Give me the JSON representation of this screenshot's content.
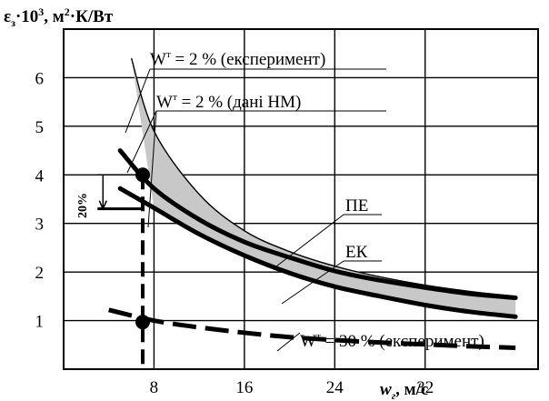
{
  "chart_data": {
    "type": "line",
    "ylabel": "εз·10³, м²·К/Вт",
    "xlabel": "wг, м/с",
    "xlim": [
      0,
      42
    ],
    "ylim": [
      0,
      7
    ],
    "x_ticks": [
      8,
      16,
      24,
      32
    ],
    "y_ticks": [
      1,
      2,
      3,
      4,
      5,
      6
    ],
    "grid": true,
    "series": [
      {
        "name": "ПЕ",
        "style": "solid",
        "x": [
          5,
          8,
          12,
          16,
          20,
          24,
          28,
          32,
          36,
          40
        ],
        "y": [
          4.5,
          3.72,
          3.08,
          2.62,
          2.3,
          2.02,
          1.83,
          1.68,
          1.55,
          1.47
        ]
      },
      {
        "name": "ЕК",
        "style": "solid",
        "x": [
          5,
          8,
          12,
          16,
          20,
          24,
          28,
          32,
          36,
          40
        ],
        "y": [
          3.72,
          3.32,
          2.78,
          2.34,
          1.98,
          1.7,
          1.5,
          1.32,
          1.18,
          1.08
        ]
      },
      {
        "name": "Wᵗ = 30 % (експеримент)",
        "style": "dashed",
        "x": [
          4,
          8,
          12,
          16,
          20,
          24,
          28,
          32,
          36,
          40
        ],
        "y": [
          1.22,
          1.0,
          0.86,
          0.75,
          0.66,
          0.6,
          0.55,
          0.51,
          0.47,
          0.44
        ]
      }
    ],
    "band_upper": {
      "x": [
        6,
        8,
        12,
        16,
        20,
        24,
        28,
        32,
        36,
        40
      ],
      "y": [
        6.4,
        4.9,
        3.6,
        2.85,
        2.42,
        2.12,
        1.9,
        1.73,
        1.6,
        1.5
      ]
    },
    "markers": [
      {
        "x": 7,
        "y": 4.0
      },
      {
        "x": 7,
        "y": 0.97
      }
    ],
    "vertical_dashed_x": 7,
    "step_marker": {
      "x_from": 3,
      "x_to": 7,
      "y_from": 3.3,
      "y_to": 4.0,
      "label": "20%"
    },
    "annotations": {
      "exp2": "Wᵗ = 2 % (експеримент)",
      "nm2": "Wᵗ = 2 % (дані НМ)",
      "exp30": "Wᵗ = 30 % (експеримент)",
      "pe": "ПЕ",
      "ek": "ЕК"
    }
  }
}
